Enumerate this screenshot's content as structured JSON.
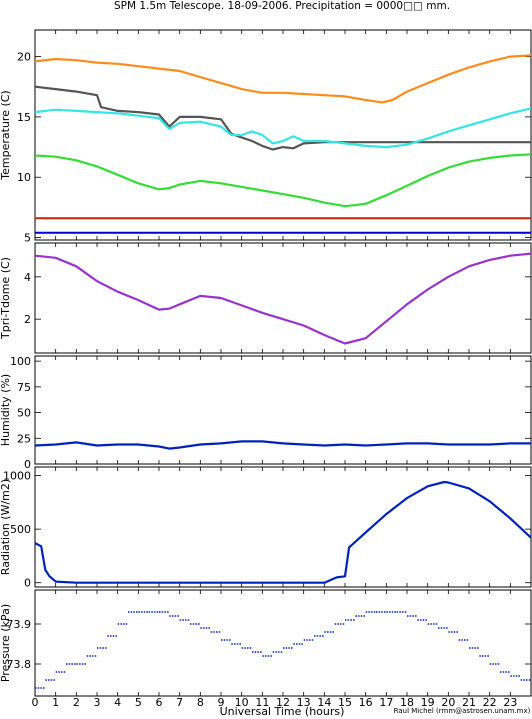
{
  "title": "SPM 1.5m Telescope. 18-09-2006. Precipitation = 0000□□ mm.",
  "xlabel": "Universal Time (hours)",
  "credit": "Raul Michel (rmm@astrosen.unam.mx)",
  "x_ticks": [
    "0",
    "1",
    "2",
    "3",
    "4",
    "5",
    "6",
    "7",
    "8",
    "9",
    "10",
    "11",
    "12",
    "13",
    "14",
    "15",
    "16",
    "17",
    "18",
    "19",
    "20",
    "21",
    "22",
    "23"
  ],
  "chart_data": [
    {
      "type": "scatter",
      "ylabel": "Temperature (C)",
      "ylim": [
        4.8,
        22.2
      ],
      "xlim": [
        0,
        24
      ],
      "yticks": [
        5,
        10,
        15,
        20
      ],
      "series": [
        {
          "color": "#ff8c1a",
          "x": [
            0,
            1,
            2,
            3,
            4,
            5,
            6,
            7,
            8,
            9,
            10,
            11,
            12,
            13,
            14,
            15,
            16,
            16.8,
            17.3,
            18,
            19,
            20,
            21,
            22,
            23,
            24
          ],
          "y": [
            19.6,
            19.8,
            19.7,
            19.5,
            19.4,
            19.2,
            19.0,
            18.8,
            18.3,
            17.8,
            17.3,
            17.0,
            17.0,
            16.9,
            16.8,
            16.7,
            16.4,
            16.2,
            16.4,
            17.1,
            17.8,
            18.5,
            19.1,
            19.6,
            20.0,
            20.1
          ]
        },
        {
          "color": "#555555",
          "x": [
            0,
            1,
            2,
            3,
            3.2,
            4,
            5,
            6,
            6.5,
            7,
            8,
            9,
            9.5,
            10,
            10.5,
            11,
            11.5,
            12,
            12.5,
            13,
            14,
            15,
            16,
            17,
            18,
            19,
            20,
            21,
            22,
            23,
            24
          ],
          "y": [
            17.5,
            17.3,
            17.1,
            16.8,
            15.8,
            15.5,
            15.4,
            15.2,
            14.2,
            15.0,
            15.0,
            14.8,
            13.6,
            13.3,
            13.0,
            12.6,
            12.3,
            12.5,
            12.4,
            12.8,
            12.9,
            12.9,
            12.9,
            12.9,
            12.9,
            12.9,
            12.9,
            12.9,
            12.9,
            12.9,
            12.9
          ]
        },
        {
          "color": "#33e6e6",
          "x": [
            0,
            1,
            2,
            3,
            4,
            5,
            6,
            6.5,
            7,
            8,
            9,
            9.5,
            10,
            10.5,
            11,
            11.5,
            12,
            12.5,
            13,
            14,
            15,
            16,
            17,
            18,
            19,
            20,
            21,
            22,
            23,
            24
          ],
          "y": [
            15.4,
            15.6,
            15.5,
            15.4,
            15.3,
            15.1,
            14.9,
            14.0,
            14.5,
            14.6,
            14.2,
            13.5,
            13.5,
            13.8,
            13.5,
            12.8,
            13.0,
            13.4,
            13.0,
            13.0,
            12.8,
            12.6,
            12.5,
            12.7,
            13.2,
            13.8,
            14.3,
            14.8,
            15.3,
            15.7
          ]
        },
        {
          "color": "#33dd33",
          "x": [
            0,
            1,
            2,
            3,
            4,
            5,
            6,
            6.5,
            7,
            8,
            9,
            10,
            11,
            12,
            13,
            14,
            15,
            16,
            17,
            18,
            19,
            20,
            21,
            22,
            23,
            24
          ],
          "y": [
            11.8,
            11.7,
            11.4,
            10.9,
            10.2,
            9.5,
            9.0,
            9.1,
            9.4,
            9.7,
            9.5,
            9.2,
            8.9,
            8.6,
            8.3,
            7.9,
            7.6,
            7.8,
            8.5,
            9.3,
            10.1,
            10.8,
            11.3,
            11.6,
            11.8,
            11.9
          ]
        },
        {
          "color": "#cc2200",
          "x": [
            0,
            24
          ],
          "y": [
            6.6,
            6.6
          ]
        },
        {
          "color": "#0000cc",
          "x": [
            0,
            24
          ],
          "y": [
            5.4,
            5.4
          ]
        }
      ]
    },
    {
      "type": "line",
      "ylabel": "Tpri-Tdome (C)",
      "ylim": [
        0.4,
        5.6
      ],
      "xlim": [
        0,
        24
      ],
      "yticks": [
        2,
        4
      ],
      "series": [
        {
          "color": "#9933cc",
          "x": [
            0,
            1,
            2,
            3,
            4,
            5,
            6,
            6.5,
            7,
            8,
            9,
            10,
            11,
            12,
            13,
            14,
            15,
            16,
            17,
            18,
            19,
            20,
            21,
            22,
            23,
            24
          ],
          "y": [
            5.0,
            4.9,
            4.5,
            3.8,
            3.3,
            2.9,
            2.45,
            2.5,
            2.7,
            3.1,
            3.0,
            2.65,
            2.3,
            2.0,
            1.7,
            1.25,
            0.85,
            1.1,
            1.9,
            2.7,
            3.4,
            4.0,
            4.5,
            4.8,
            5.0,
            5.1
          ]
        }
      ]
    },
    {
      "type": "line",
      "ylabel": "Humidity (%)",
      "ylim": [
        0,
        105
      ],
      "xlim": [
        0,
        24
      ],
      "yticks": [
        0,
        25,
        50,
        75,
        100
      ],
      "series": [
        {
          "color": "#0022bb",
          "x": [
            0,
            1,
            2,
            3,
            4,
            5,
            6,
            6.5,
            7,
            8,
            9,
            10,
            11,
            12,
            13,
            14,
            15,
            16,
            17,
            18,
            19,
            20,
            21,
            22,
            23,
            24
          ],
          "y": [
            18,
            19,
            21,
            18,
            19,
            19,
            17,
            15,
            16,
            19,
            20,
            22,
            22,
            20,
            19,
            18,
            19,
            18,
            19,
            20,
            20,
            19,
            19,
            19,
            20,
            20
          ]
        }
      ]
    },
    {
      "type": "line",
      "ylabel": "Radiation (W/m2)",
      "ylim": [
        -40,
        1080
      ],
      "xlim": [
        0,
        24
      ],
      "yticks": [
        0,
        500,
        1000
      ],
      "series": [
        {
          "color": "#0022bb",
          "x": [
            0,
            0.3,
            0.5,
            0.7,
            1.0,
            2,
            3,
            4,
            5,
            6,
            7,
            8,
            9,
            10,
            11,
            12,
            13,
            14,
            14.6,
            15.0,
            15.2,
            16,
            17,
            18,
            19,
            19.8,
            20,
            21,
            22,
            23,
            24
          ],
          "y": [
            370,
            340,
            120,
            60,
            10,
            0,
            0,
            0,
            0,
            0,
            0,
            0,
            0,
            0,
            0,
            0,
            0,
            0,
            50,
            60,
            330,
            470,
            640,
            790,
            900,
            940,
            935,
            880,
            760,
            600,
            420
          ]
        }
      ]
    },
    {
      "type": "scatter",
      "ylabel": "Pressure (kPa)",
      "ylim": [
        73.72,
        73.985
      ],
      "xlim": [
        0,
        24
      ],
      "yticks": [
        73.8,
        73.9
      ],
      "series": [
        {
          "color": "#0022bb",
          "x": [
            0.0,
            0.5,
            1.0,
            1.5,
            2.0,
            2.5,
            3.0,
            3.5,
            4.0,
            4.5,
            5.0,
            5.5,
            6.0,
            6.5,
            7.0,
            7.5,
            8.0,
            8.5,
            9.0,
            9.5,
            10.0,
            10.5,
            11.0,
            11.5,
            12.0,
            12.5,
            13.0,
            13.5,
            14.0,
            14.5,
            15.0,
            15.5,
            16.0,
            16.5,
            17.0,
            17.5,
            18.0,
            18.5,
            19.0,
            19.5,
            20.0,
            20.5,
            21.0,
            21.5,
            22.0,
            22.5,
            23.0,
            23.5
          ],
          "y": [
            73.74,
            73.76,
            73.78,
            73.8,
            73.8,
            73.82,
            73.84,
            73.87,
            73.9,
            73.93,
            73.93,
            73.93,
            73.93,
            73.92,
            73.91,
            73.9,
            73.89,
            73.88,
            73.86,
            73.85,
            73.84,
            73.83,
            73.82,
            73.83,
            73.84,
            73.85,
            73.86,
            73.87,
            73.88,
            73.9,
            73.91,
            73.92,
            73.93,
            73.93,
            73.93,
            73.93,
            73.92,
            73.91,
            73.9,
            73.89,
            73.88,
            73.86,
            73.84,
            73.82,
            73.8,
            73.78,
            73.77,
            73.76
          ]
        }
      ]
    }
  ]
}
